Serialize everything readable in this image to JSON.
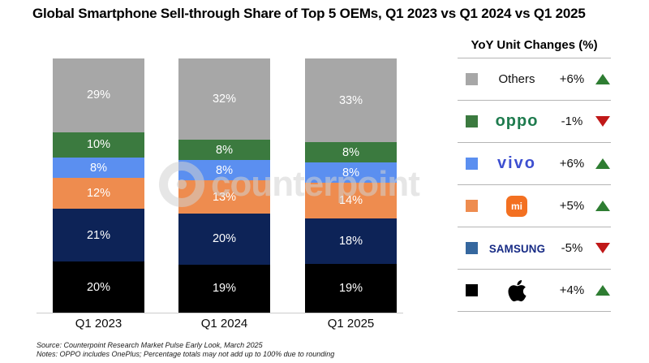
{
  "title": "Global Smartphone Sell-through Share of Top 5 OEMs, Q1 2023 vs Q1 2024 vs Q1 2025",
  "watermark": {
    "icon": "counterpoint-ring-icon",
    "text": "counterpoint"
  },
  "chart_data": {
    "type": "bar",
    "stacked": true,
    "title": "Global Smartphone Sell-through Share of Top 5 OEMs, Q1 2023 vs Q1 2024 vs Q1 2025",
    "categories": [
      "Q1 2023",
      "Q1 2024",
      "Q1 2025"
    ],
    "series": [
      {
        "name": "Others",
        "color": "#a7a7a7",
        "values": [
          29,
          32,
          33
        ]
      },
      {
        "name": "OPPO",
        "color": "#3b7a3f",
        "values": [
          10,
          8,
          8
        ]
      },
      {
        "name": "vivo",
        "color": "#5b8ff0",
        "values": [
          8,
          8,
          8
        ]
      },
      {
        "name": "Xiaomi",
        "color": "#ee8c4f",
        "values": [
          12,
          13,
          14
        ]
      },
      {
        "name": "Samsung",
        "color": "#0d2357",
        "values": [
          21,
          20,
          18
        ]
      },
      {
        "name": "Apple",
        "color": "#000000",
        "values": [
          20,
          19,
          19
        ]
      }
    ],
    "stack_order": "top-to-bottom",
    "value_suffix": "%",
    "ylim": [
      0,
      100
    ],
    "grid": false,
    "legend_position": "right"
  },
  "legend": {
    "header": "YoY Unit Changes (%)",
    "up_color": "#2e7d32",
    "down_color": "#c01818",
    "rows": [
      {
        "name": "Others",
        "logo": "others-label",
        "logo_text": "Others",
        "logo_color": "#111111",
        "change": "+6%",
        "direction": "up",
        "swatch": "#a7a7a7"
      },
      {
        "name": "OPPO",
        "logo": "oppo-logo",
        "logo_text": "oppo",
        "logo_color": "#1e7b4e",
        "change": "-1%",
        "direction": "down",
        "swatch": "#3b7a3f"
      },
      {
        "name": "vivo",
        "logo": "vivo-logo",
        "logo_text": "vivo",
        "logo_color": "#3d4fd0",
        "change": "+6%",
        "direction": "up",
        "swatch": "#5b8ff0"
      },
      {
        "name": "Xiaomi",
        "logo": "xiaomi-mi-logo",
        "logo_text": "mi",
        "logo_color": "#f37021",
        "change": "+5%",
        "direction": "up",
        "swatch": "#ee8c4f"
      },
      {
        "name": "Samsung",
        "logo": "samsung-logo",
        "logo_text": "SAMSUNG",
        "logo_color": "#172b85",
        "change": "-5%",
        "direction": "down",
        "swatch": "#35679e"
      },
      {
        "name": "Apple",
        "logo": "apple-logo",
        "logo_text": "",
        "logo_color": "#000000",
        "change": "+4%",
        "direction": "up",
        "swatch": "#000000"
      }
    ]
  },
  "footer": {
    "source": "Source: Counterpoint Research Market Pulse Early Look, March 2025",
    "notes": "Notes: OPPO includes OnePlus; Percentage totals may not add up to 100% due to rounding"
  }
}
